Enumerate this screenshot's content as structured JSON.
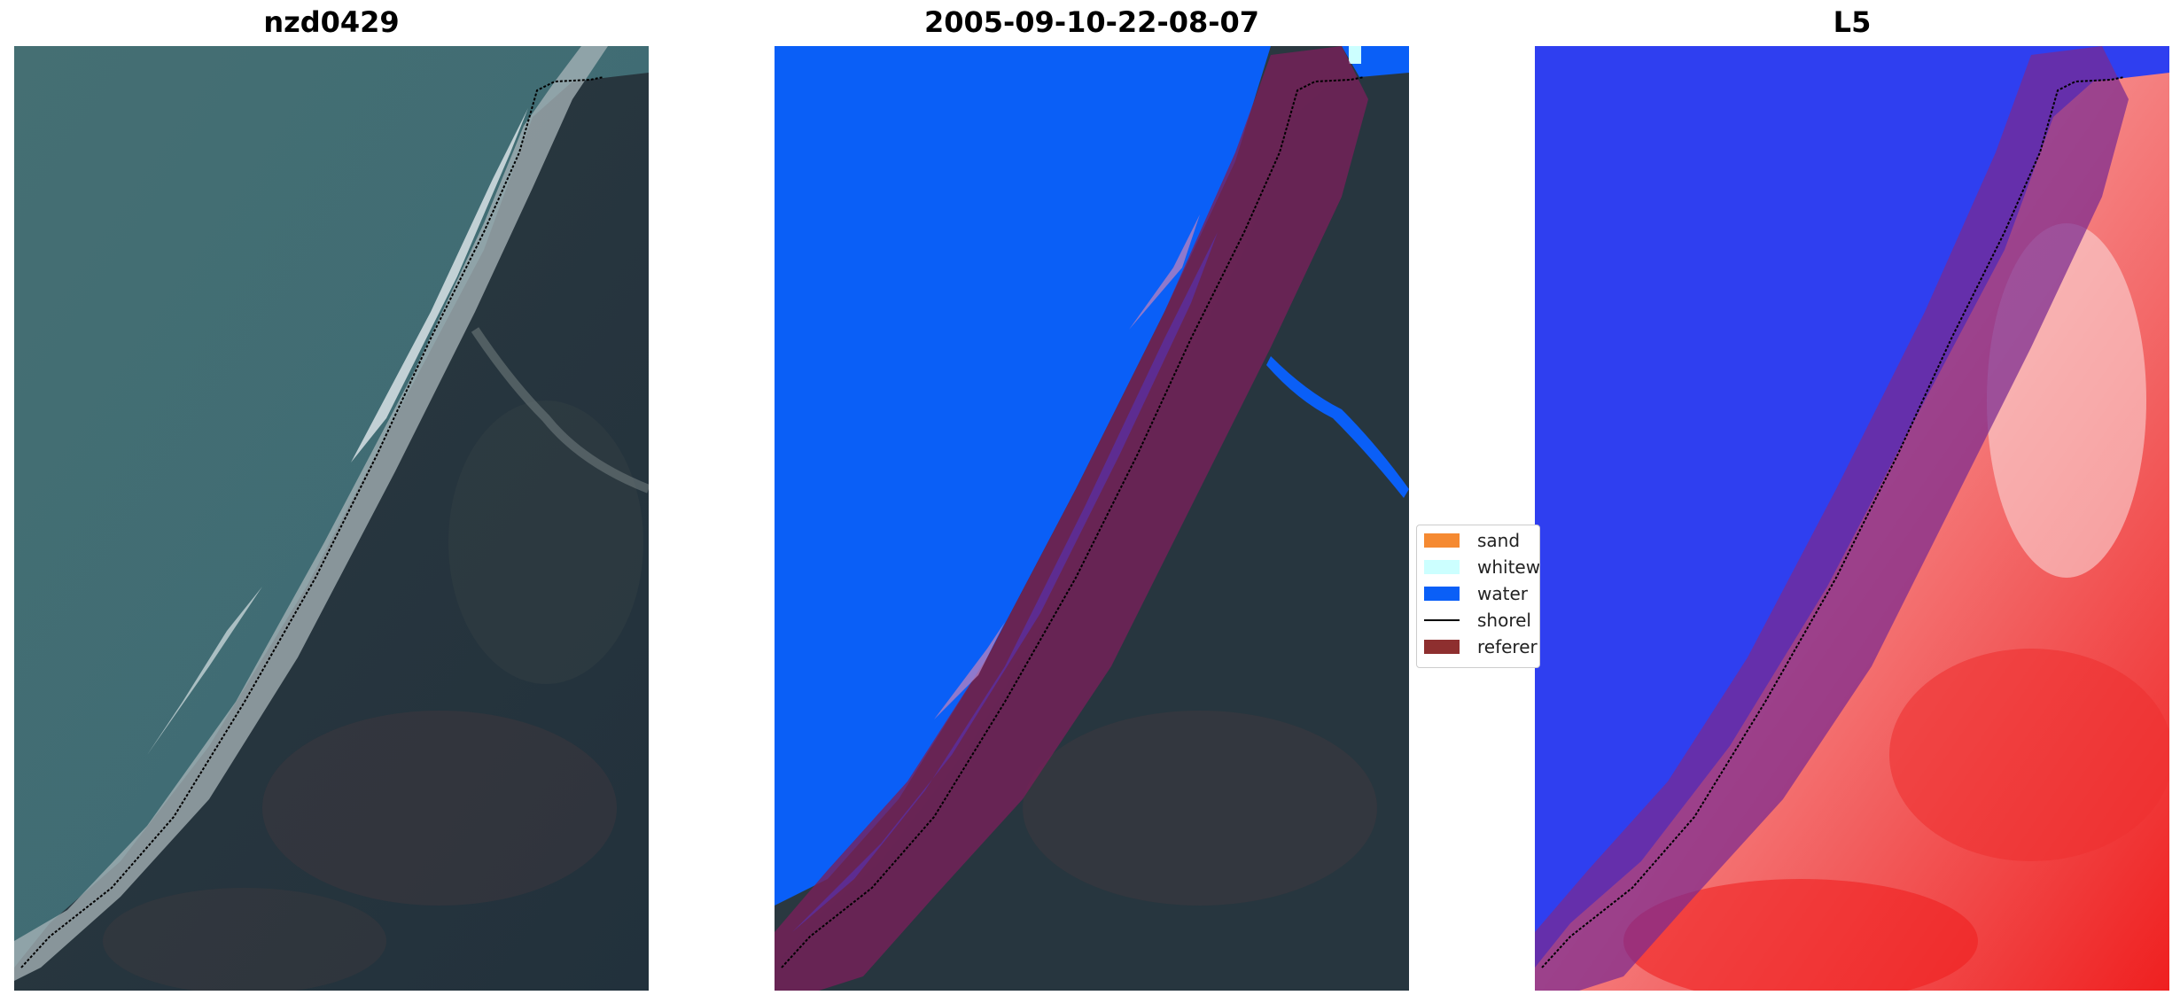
{
  "panels": [
    {
      "title": "nzd0429"
    },
    {
      "title": "2005-09-10-22-08-07"
    },
    {
      "title": "L5"
    }
  ],
  "legend": {
    "items": [
      {
        "label": "sand",
        "color": "#f58a32",
        "type": "patch"
      },
      {
        "label": "whitew",
        "color": "#ccffff",
        "type": "patch"
      },
      {
        "label": "water",
        "color": "#0a5ff7",
        "type": "patch"
      },
      {
        "label": "shorel",
        "color": "#000000",
        "type": "line"
      },
      {
        "label": "referer",
        "color": "#8e2f2f",
        "type": "patch"
      }
    ]
  },
  "colors": {
    "sea": "#3f6b72",
    "land": "#26353e",
    "water_class": "#0a5ff7",
    "reference_buffer": "#7a1f3a",
    "index_blue": "#2a3cf0",
    "index_red": "#f24444"
  }
}
